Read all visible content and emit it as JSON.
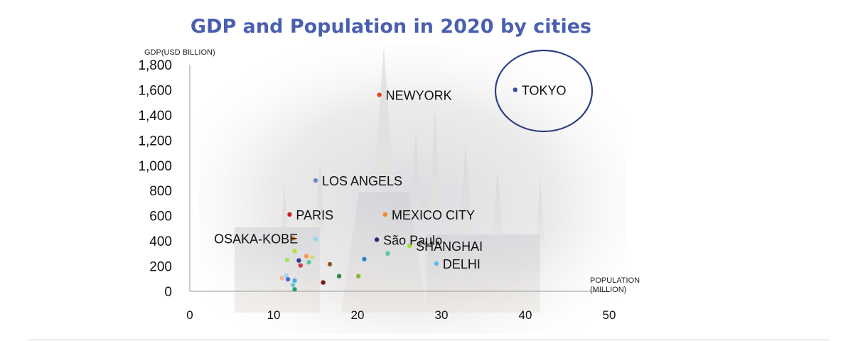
{
  "chart_data": {
    "type": "scatter",
    "title": "GDP and Population in 2020 by cities",
    "ylabel": "GDP(USD BILLION)",
    "xlabel_lines": [
      "POPULATION",
      "(MILLION)"
    ],
    "xlim": [
      0,
      50
    ],
    "ylim": [
      0,
      1800
    ],
    "xticks": [
      0,
      10,
      20,
      30,
      40,
      50
    ],
    "yticks": [
      0,
      200,
      400,
      600,
      800,
      1000,
      1200,
      1400,
      1600,
      1800
    ],
    "ytick_labels": [
      "0",
      "200",
      "400",
      "600",
      "800",
      "1,000",
      "1,200",
      "1,400",
      "1,600",
      "1,800"
    ],
    "grid": false,
    "highlight": "TOKYO",
    "points": [
      {
        "label": "TOKYO",
        "x": 38.8,
        "y": 1600,
        "color": "#3a4f9e"
      },
      {
        "label": "NEWYORK",
        "x": 22.6,
        "y": 1560,
        "color": "#e8401f"
      },
      {
        "label": "LOS ANGELS",
        "x": 15.0,
        "y": 880,
        "color": "#6d86cc"
      },
      {
        "label": "PARIS",
        "x": 11.9,
        "y": 610,
        "color": "#c42323"
      },
      {
        "label": "MEXICO CITY",
        "x": 23.3,
        "y": 610,
        "color": "#f08a2a"
      },
      {
        "label": "OSAKA-KOBE",
        "x": 12.3,
        "y": 420,
        "color": "#e07a1f"
      },
      {
        "label": "São Paulo",
        "x": 22.3,
        "y": 410,
        "color": "#1f2a7a"
      },
      {
        "label": "SHANGHAI",
        "x": 26.2,
        "y": 360,
        "color": "#9ee23a"
      },
      {
        "label": "DELHI",
        "x": 29.4,
        "y": 220,
        "color": "#5ab8ee"
      },
      {
        "label": "",
        "x": 12.5,
        "y": 320,
        "color": "#b2e52e"
      },
      {
        "label": "",
        "x": 11.6,
        "y": 250,
        "color": "#a6e06a"
      },
      {
        "label": "",
        "x": 13.0,
        "y": 245,
        "color": "#2a3f9a"
      },
      {
        "label": "",
        "x": 13.2,
        "y": 205,
        "color": "#d63d3d"
      },
      {
        "label": "",
        "x": 13.9,
        "y": 280,
        "color": "#f29a55"
      },
      {
        "label": "",
        "x": 14.2,
        "y": 230,
        "color": "#55c9a6"
      },
      {
        "label": "",
        "x": 14.6,
        "y": 270,
        "color": "#c9dd7a"
      },
      {
        "label": "",
        "x": 15.0,
        "y": 415,
        "color": "#8fd8ee"
      },
      {
        "label": "",
        "x": 16.7,
        "y": 215,
        "color": "#8a5a1f"
      },
      {
        "label": "",
        "x": 15.9,
        "y": 70,
        "color": "#7a1a1a"
      },
      {
        "label": "",
        "x": 17.8,
        "y": 120,
        "color": "#2f8a3f"
      },
      {
        "label": "",
        "x": 20.1,
        "y": 120,
        "color": "#8ab52e"
      },
      {
        "label": "",
        "x": 20.8,
        "y": 255,
        "color": "#2a86c8"
      },
      {
        "label": "",
        "x": 23.6,
        "y": 300,
        "color": "#55caa0"
      },
      {
        "label": "",
        "x": 11.0,
        "y": 105,
        "color": "#f5b3a5"
      },
      {
        "label": "",
        "x": 11.5,
        "y": 125,
        "color": "#9ed6ef"
      },
      {
        "label": "",
        "x": 11.7,
        "y": 95,
        "color": "#3a6fd8"
      },
      {
        "label": "",
        "x": 12.3,
        "y": 50,
        "color": "#6ac9d0"
      },
      {
        "label": "",
        "x": 12.5,
        "y": 85,
        "color": "#48aee8"
      },
      {
        "label": "",
        "x": 12.5,
        "y": 15,
        "color": "#2f9a6e"
      }
    ]
  }
}
